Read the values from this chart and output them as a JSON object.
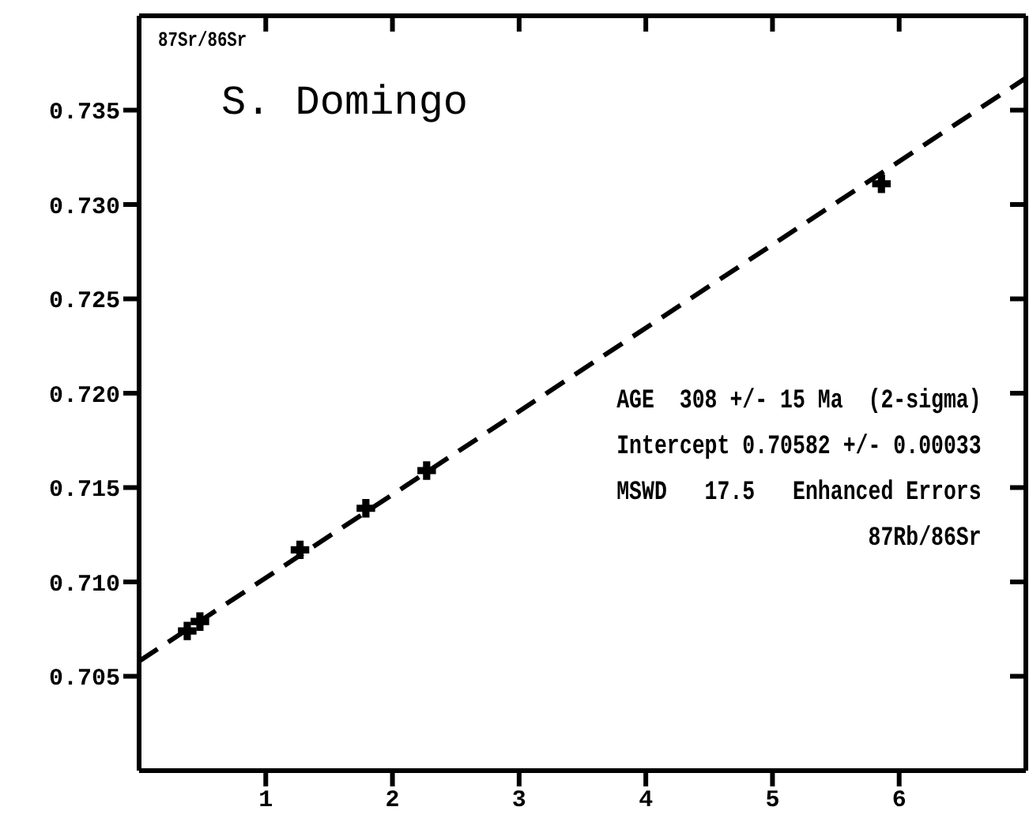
{
  "chart_data": {
    "type": "scatter",
    "title": "S. Domingo",
    "xlabel": "87Rb/86Sr",
    "ylabel": "87Sr/86Sr",
    "annotations": [
      "AGE  308 +/- 15 Ma  (2-sigma)",
      "Intercept 0.70582 +/- 0.00033",
      "MSWD   17.5   Enhanced Errors"
    ],
    "series": [
      {
        "color": "#000000",
        "marker": "cross",
        "x": [
          0.38,
          0.48,
          1.27,
          1.79,
          2.27,
          5.86
        ],
        "values": [
          0.7074,
          0.7079,
          0.7117,
          0.7139,
          0.7159,
          0.7311
        ]
      },
      {
        "type": "line",
        "color": "#000000",
        "line_style": "dashed",
        "marker": "none",
        "x": [
          0,
          7
        ],
        "values": [
          0.7058,
          0.7367
        ]
      }
    ],
    "xlim": [
      0,
      7
    ],
    "xticks": [
      1,
      2,
      3,
      4,
      5,
      6
    ],
    "ylim": [
      0.7,
      0.74
    ],
    "yticks": [
      0.705,
      {
        "value": 0.71,
        "label": "0.710"
      },
      0.715,
      {
        "value": 0.72,
        "label": "0.720"
      },
      0.725,
      {
        "value": 0.73,
        "label": "0.730"
      },
      0.735
    ],
    "legend": false
  }
}
